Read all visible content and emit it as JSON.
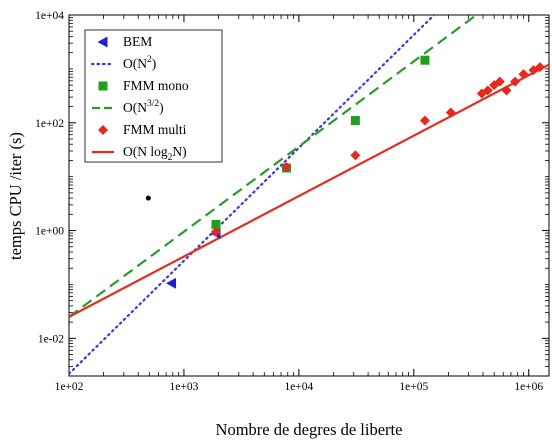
{
  "chart_data": {
    "type": "scatter",
    "xlabel": "Nombre de degres de liberte",
    "ylabel": "temps CPU  /iter (s)",
    "x_scale": "log",
    "y_scale": "log",
    "xlim": [
      100,
      1500000
    ],
    "ylim": [
      0.002,
      10000
    ],
    "x_ticks": [
      100,
      1000,
      10000,
      100000,
      1000000
    ],
    "x_tick_labels": [
      "1e+02",
      "1e+03",
      "1e+04",
      "1e+05",
      "1e+06"
    ],
    "y_ticks": [
      0.01,
      1,
      100,
      10000
    ],
    "y_tick_labels": [
      "1e-02",
      "1e+00",
      "1e+02",
      "1e+04"
    ],
    "grid": false,
    "legend_position": "top-left",
    "series": [
      {
        "name": "BEM",
        "kind": "markers",
        "marker": "triangle-left",
        "color": "#1f1fd6",
        "points": [
          [
            780,
            0.105
          ],
          [
            1900,
            0.88
          ]
        ]
      },
      {
        "name": "O(N^2)",
        "kind": "line",
        "style": "dotted",
        "color": "#3a3ad6",
        "points": [
          [
            100,
            0.0022
          ],
          [
            150000,
            10000
          ]
        ]
      },
      {
        "name": "FMM mono",
        "kind": "markers",
        "marker": "square",
        "color": "#1f9e1f",
        "points": [
          [
            1900,
            1.3
          ],
          [
            7800,
            14.5
          ],
          [
            31000,
            110
          ],
          [
            125000,
            1450
          ]
        ]
      },
      {
        "name": "O(N^{3/2})",
        "kind": "line",
        "style": "dashed",
        "color": "#2a9a2a",
        "points": [
          [
            100,
            0.025
          ],
          [
            350000,
            10000
          ]
        ]
      },
      {
        "name": "FMM multi",
        "kind": "markers",
        "marker": "diamond",
        "color": "#e8281e",
        "points": [
          [
            1900,
            0.95
          ],
          [
            7800,
            15
          ],
          [
            31000,
            25
          ],
          [
            125000,
            110
          ],
          [
            210000,
            155
          ],
          [
            390000,
            350
          ],
          [
            440000,
            400
          ],
          [
            500000,
            500
          ],
          [
            560000,
            580
          ],
          [
            640000,
            400
          ],
          [
            760000,
            580
          ],
          [
            900000,
            800
          ],
          [
            1100000,
            950
          ],
          [
            1250000,
            1080
          ]
        ]
      },
      {
        "name": "O(N log_2N)",
        "kind": "line",
        "style": "solid",
        "color": "#e03020",
        "points": [
          [
            100,
            0.025
          ],
          [
            1500000,
            1200
          ]
        ]
      },
      {
        "name": "",
        "kind": "markers",
        "marker": "dot",
        "color": "#000000",
        "points": [
          [
            490,
            4.0
          ]
        ]
      }
    ]
  },
  "legend": [
    {
      "base": "BEM",
      "sup": "",
      "sub": "",
      "tail": "",
      "tail2": ""
    },
    {
      "base": "O(N",
      "sup": "2",
      "sub": "",
      "tail": ")",
      "tail2": ""
    },
    {
      "base": "FMM mono",
      "sup": "",
      "sub": "",
      "tail": "",
      "tail2": ""
    },
    {
      "base": "O(N",
      "sup": "3/2",
      "sub": "",
      "tail": ")",
      "tail2": ""
    },
    {
      "base": "FMM multi",
      "sup": "",
      "sub": "",
      "tail": "",
      "tail2": ""
    },
    {
      "base": "O(N log",
      "sup": "",
      "sub": "2",
      "tail": "N)",
      "tail2": ""
    }
  ]
}
